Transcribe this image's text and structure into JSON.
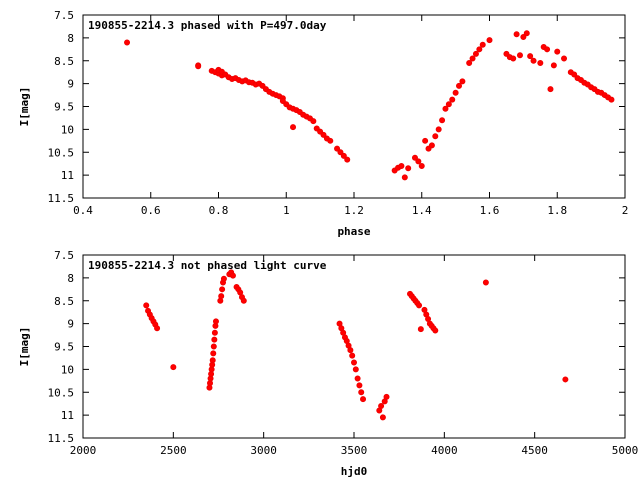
{
  "chart_data": [
    {
      "type": "scatter",
      "title": "190855-2214.3 phased with P=497.0day",
      "xlabel": "phase",
      "ylabel": "I[mag]",
      "xlim": [
        0.4,
        2.0
      ],
      "ylim": [
        7.5,
        11.5
      ],
      "y_inverted": true,
      "grid": false,
      "x_ticks": [
        0.4,
        0.6,
        0.8,
        1.0,
        1.2,
        1.4,
        1.6,
        1.8,
        2.0
      ],
      "x_tick_labels": [
        "0.4",
        "0.6",
        "0.8",
        "1",
        "1.2",
        "1.4",
        "1.6",
        "1.8",
        "2"
      ],
      "y_ticks": [
        7.5,
        8,
        8.5,
        9,
        9.5,
        10,
        10.5,
        11,
        11.5
      ],
      "y_tick_labels": [
        "7.5",
        "8",
        "8.5",
        "9",
        "9.5",
        "10",
        "10.5",
        "11",
        "11.5"
      ],
      "marker_color": "#ff0000",
      "points": [
        [
          0.53,
          8.1
        ],
        [
          0.74,
          8.6
        ],
        [
          0.74,
          8.62
        ],
        [
          0.78,
          8.72
        ],
        [
          0.79,
          8.75
        ],
        [
          0.8,
          8.78
        ],
        [
          0.8,
          8.7
        ],
        [
          0.81,
          8.82
        ],
        [
          0.81,
          8.74
        ],
        [
          0.82,
          8.8
        ],
        [
          0.83,
          8.86
        ],
        [
          0.84,
          8.9
        ],
        [
          0.85,
          8.88
        ],
        [
          0.86,
          8.92
        ],
        [
          0.87,
          8.95
        ],
        [
          0.88,
          8.93
        ],
        [
          0.89,
          8.97
        ],
        [
          0.9,
          8.98
        ],
        [
          0.91,
          9.02
        ],
        [
          0.92,
          9.0
        ],
        [
          0.93,
          9.05
        ],
        [
          0.94,
          9.12
        ],
        [
          0.95,
          9.18
        ],
        [
          0.96,
          9.22
        ],
        [
          0.97,
          9.25
        ],
        [
          0.98,
          9.28
        ],
        [
          0.99,
          9.32
        ],
        [
          0.99,
          9.38
        ],
        [
          1.0,
          9.45
        ],
        [
          1.01,
          9.52
        ],
        [
          1.02,
          9.55
        ],
        [
          1.03,
          9.58
        ],
        [
          1.04,
          9.62
        ],
        [
          1.05,
          9.68
        ],
        [
          1.06,
          9.72
        ],
        [
          1.07,
          9.76
        ],
        [
          1.08,
          9.82
        ],
        [
          1.02,
          9.95
        ],
        [
          1.09,
          9.98
        ],
        [
          1.1,
          10.05
        ],
        [
          1.11,
          10.12
        ],
        [
          1.12,
          10.2
        ],
        [
          1.13,
          10.25
        ],
        [
          1.15,
          10.42
        ],
        [
          1.16,
          10.5
        ],
        [
          1.17,
          10.58
        ],
        [
          1.18,
          10.66
        ],
        [
          1.32,
          10.9
        ],
        [
          1.33,
          10.84
        ],
        [
          1.34,
          10.8
        ],
        [
          1.35,
          11.05
        ],
        [
          1.36,
          10.85
        ],
        [
          1.38,
          10.62
        ],
        [
          1.39,
          10.7
        ],
        [
          1.4,
          10.8
        ],
        [
          1.41,
          10.25
        ],
        [
          1.42,
          10.42
        ],
        [
          1.43,
          10.35
        ],
        [
          1.44,
          10.15
        ],
        [
          1.45,
          10.0
        ],
        [
          1.46,
          9.8
        ],
        [
          1.47,
          9.55
        ],
        [
          1.48,
          9.45
        ],
        [
          1.49,
          9.35
        ],
        [
          1.5,
          9.2
        ],
        [
          1.51,
          9.05
        ],
        [
          1.52,
          8.95
        ],
        [
          1.54,
          8.55
        ],
        [
          1.55,
          8.45
        ],
        [
          1.56,
          8.35
        ],
        [
          1.57,
          8.25
        ],
        [
          1.58,
          8.15
        ],
        [
          1.6,
          8.05
        ],
        [
          1.65,
          8.35
        ],
        [
          1.66,
          8.42
        ],
        [
          1.67,
          8.45
        ],
        [
          1.68,
          7.92
        ],
        [
          1.69,
          8.38
        ],
        [
          1.7,
          7.98
        ],
        [
          1.71,
          7.9
        ],
        [
          1.72,
          8.4
        ],
        [
          1.73,
          8.5
        ],
        [
          1.75,
          8.55
        ],
        [
          1.76,
          8.2
        ],
        [
          1.77,
          8.25
        ],
        [
          1.78,
          9.12
        ],
        [
          1.79,
          8.6
        ],
        [
          1.8,
          8.3
        ],
        [
          1.82,
          8.45
        ],
        [
          1.84,
          8.75
        ],
        [
          1.85,
          8.8
        ],
        [
          1.86,
          8.88
        ],
        [
          1.87,
          8.92
        ],
        [
          1.88,
          8.98
        ],
        [
          1.89,
          9.02
        ],
        [
          1.9,
          9.08
        ],
        [
          1.91,
          9.12
        ],
        [
          1.92,
          9.18
        ],
        [
          1.93,
          9.2
        ],
        [
          1.94,
          9.25
        ],
        [
          1.95,
          9.3
        ],
        [
          1.96,
          9.35
        ]
      ]
    },
    {
      "type": "scatter",
      "title": "190855-2214.3 not phased light curve",
      "xlabel": "hjd0",
      "ylabel": "I[mag]",
      "xlim": [
        2000,
        5000
      ],
      "ylim": [
        7.5,
        11.5
      ],
      "y_inverted": true,
      "grid": false,
      "x_ticks": [
        2000,
        2500,
        3000,
        3500,
        4000,
        4500,
        5000
      ],
      "x_tick_labels": [
        "2000",
        "2500",
        "3000",
        "3500",
        "4000",
        "4500",
        "5000"
      ],
      "y_ticks": [
        7.5,
        8,
        8.5,
        9,
        9.5,
        10,
        10.5,
        11,
        11.5
      ],
      "y_tick_labels": [
        "7.5",
        "8",
        "8.5",
        "9",
        "9.5",
        "10",
        "10.5",
        "11",
        "11.5"
      ],
      "marker_color": "#ff0000",
      "points": [
        [
          2350,
          8.6
        ],
        [
          2360,
          8.72
        ],
        [
          2370,
          8.8
        ],
        [
          2380,
          8.88
        ],
        [
          2390,
          8.95
        ],
        [
          2400,
          9.02
        ],
        [
          2410,
          9.1
        ],
        [
          2500,
          9.95
        ],
        [
          2700,
          10.4
        ],
        [
          2703,
          10.3
        ],
        [
          2706,
          10.2
        ],
        [
          2709,
          10.1
        ],
        [
          2712,
          10.0
        ],
        [
          2715,
          9.9
        ],
        [
          2718,
          9.8
        ],
        [
          2721,
          9.65
        ],
        [
          2724,
          9.5
        ],
        [
          2727,
          9.35
        ],
        [
          2730,
          9.2
        ],
        [
          2733,
          9.05
        ],
        [
          2736,
          8.95
        ],
        [
          2760,
          8.5
        ],
        [
          2765,
          8.4
        ],
        [
          2770,
          8.25
        ],
        [
          2775,
          8.1
        ],
        [
          2780,
          8.02
        ],
        [
          2810,
          7.92
        ],
        [
          2820,
          7.88
        ],
        [
          2830,
          7.95
        ],
        [
          2850,
          8.2
        ],
        [
          2860,
          8.25
        ],
        [
          2870,
          8.32
        ],
        [
          2880,
          8.42
        ],
        [
          2890,
          8.5
        ],
        [
          3420,
          9.0
        ],
        [
          3430,
          9.1
        ],
        [
          3440,
          9.2
        ],
        [
          3450,
          9.3
        ],
        [
          3460,
          9.38
        ],
        [
          3470,
          9.48
        ],
        [
          3480,
          9.58
        ],
        [
          3490,
          9.7
        ],
        [
          3500,
          9.85
        ],
        [
          3510,
          10.0
        ],
        [
          3520,
          10.2
        ],
        [
          3530,
          10.35
        ],
        [
          3540,
          10.5
        ],
        [
          3550,
          10.65
        ],
        [
          3640,
          10.9
        ],
        [
          3650,
          10.8
        ],
        [
          3660,
          11.05
        ],
        [
          3670,
          10.7
        ],
        [
          3680,
          10.6
        ],
        [
          3810,
          8.35
        ],
        [
          3820,
          8.4
        ],
        [
          3830,
          8.45
        ],
        [
          3840,
          8.5
        ],
        [
          3850,
          8.55
        ],
        [
          3860,
          8.6
        ],
        [
          3870,
          9.12
        ],
        [
          3890,
          8.7
        ],
        [
          3900,
          8.8
        ],
        [
          3910,
          8.9
        ],
        [
          3920,
          9.0
        ],
        [
          3930,
          9.05
        ],
        [
          3940,
          9.1
        ],
        [
          3950,
          9.15
        ],
        [
          4230,
          8.1
        ],
        [
          4670,
          10.22
        ]
      ]
    }
  ]
}
